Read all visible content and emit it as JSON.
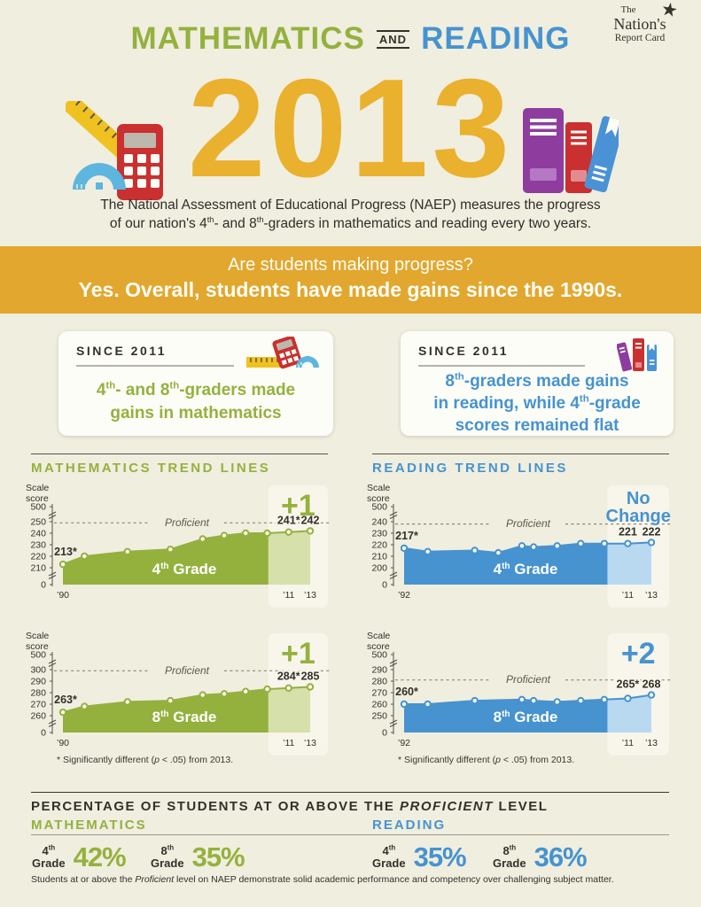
{
  "logo": {
    "the": "The",
    "nations": "Nation's",
    "report_card": "Report Card"
  },
  "header": {
    "title_math": "MATHEMATICS",
    "title_and": "AND",
    "title_reading": "READING"
  },
  "hero": {
    "year": "2013",
    "desc_line1": "The National Assessment of Educational Progress (NAEP) measures the progress",
    "desc_line2_parts": [
      {
        "t": "of our nation's 4"
      },
      {
        "sup": "th"
      },
      {
        "t": "- and 8"
      },
      {
        "sup": "th"
      },
      {
        "t": "-graders in mathematics and reading every two years."
      }
    ]
  },
  "banner": {
    "question": "Are students making progress?",
    "answer": "Yes. Overall, students have made gains since the 1990s."
  },
  "since_boxes": [
    {
      "label": "SINCE 2011",
      "lines": [
        [
          {
            "t": "4"
          },
          {
            "sup": "th"
          },
          {
            "t": "- and 8"
          },
          {
            "sup": "th"
          },
          {
            "t": "-graders made"
          }
        ],
        [
          {
            "t": "gains in mathematics"
          }
        ],
        []
      ]
    },
    {
      "label": "SINCE 2011",
      "lines": [
        [
          {
            "t": "8"
          },
          {
            "sup": "th"
          },
          {
            "t": "-graders made gains"
          }
        ],
        [
          {
            "t": "in reading, while 4"
          },
          {
            "sup": "th"
          },
          {
            "t": "-grade"
          }
        ],
        [
          {
            "t": "scores remained flat"
          }
        ]
      ]
    }
  ],
  "sections": {
    "math_title": "MATHEMATICS TREND LINES",
    "reading_title": "READING TREND LINES"
  },
  "footnote_parts": [
    {
      "t": "* Significantly different ("
    },
    {
      "i": "p"
    },
    {
      "t": " < .05) from 2013."
    }
  ],
  "proficient_section": {
    "header_parts": [
      {
        "t": "PERCENTAGE OF STUDENTS AT OR ABOVE THE "
      },
      {
        "i": "PROFICIENT"
      },
      {
        "t": " LEVEL"
      }
    ],
    "math_label": "MATHEMATICS",
    "reading_label": "READING",
    "stats": [
      {
        "grade": "4",
        "sup": "th",
        "word": "Grade",
        "value": "42%",
        "subject": "math"
      },
      {
        "grade": "8",
        "sup": "th",
        "word": "Grade",
        "value": "35%",
        "subject": "math"
      },
      {
        "grade": "4",
        "sup": "th",
        "word": "Grade",
        "value": "35%",
        "subject": "reading"
      },
      {
        "grade": "8",
        "sup": "th",
        "word": "Grade",
        "value": "36%",
        "subject": "reading"
      }
    ],
    "footer_parts": [
      {
        "t": "Students at or above the "
      },
      {
        "i": "Proficient"
      },
      {
        "t": " level on NAEP demonstrate solid academic performance and competency over challenging subject matter."
      }
    ]
  },
  "colors": {
    "math": "#94b13e",
    "math_light": "#d6e0aa",
    "reading": "#4693d0",
    "reading_light": "#b9d9f1",
    "gold": "#eab12e",
    "banner_gold": "#e2a72e",
    "dark": "#33312a",
    "cream": "#f0eedf",
    "band": "#f8f5eb",
    "box_white": "#fdfdf8",
    "ruler_yellow": "#f0c221",
    "calculator_red": "#c9302f",
    "protractor_blue": "#5cb6df",
    "book_purple": "#8e3d9e",
    "book_red": "#c9302f",
    "book_blue": "#4a92d6"
  },
  "icons": [
    "star-icon",
    "ruler-icon",
    "calculator-icon",
    "protractor-icon",
    "book-purple-icon",
    "book-red-icon",
    "book-blue-icon"
  ],
  "chart_data": [
    {
      "id": "math-grade4",
      "type": "area",
      "subject": "math",
      "scale_label_line1": "Scale",
      "scale_label_line2": "score",
      "y_axis_top": "500",
      "y_axis_bottom": "0",
      "y_ticks": [
        250,
        240,
        230,
        220,
        210
      ],
      "proficient_value": 249,
      "proficient_label": "Proficient",
      "years": [
        1990,
        1992,
        1996,
        2000,
        2003,
        2005,
        2007,
        2009,
        2011,
        2013
      ],
      "values": [
        213,
        220,
        224,
        226,
        235,
        238,
        240,
        240,
        241,
        242
      ],
      "year_tick_labels": [
        {
          "year": 1990,
          "label": "’90"
        },
        {
          "year": 2011,
          "label": "’11"
        },
        {
          "year": 2013,
          "label": "’13"
        }
      ],
      "start_label": "213*",
      "end_labels": [
        {
          "year": 2011,
          "label": "241*"
        },
        {
          "year": 2013,
          "label": "242"
        }
      ],
      "badge_lines": [
        "+1"
      ],
      "grade_label_parts": [
        {
          "t": "4"
        },
        {
          "sup": "th"
        },
        {
          "t": " Grade"
        }
      ],
      "highlight_from_year": 2011
    },
    {
      "id": "reading-grade4",
      "type": "area",
      "subject": "reading",
      "scale_label_line1": "Scale",
      "scale_label_line2": "score",
      "y_axis_top": "500",
      "y_axis_bottom": "0",
      "y_ticks": [
        240,
        230,
        220,
        210,
        200
      ],
      "proficient_value": 238,
      "proficient_label": "Proficient",
      "years": [
        1992,
        1994,
        1998,
        2000,
        2002,
        2003,
        2005,
        2007,
        2009,
        2011,
        2013
      ],
      "values": [
        217,
        214,
        215,
        213,
        219,
        218,
        219,
        221,
        221,
        221,
        222
      ],
      "year_tick_labels": [
        {
          "year": 1992,
          "label": "’92"
        },
        {
          "year": 2011,
          "label": "’11"
        },
        {
          "year": 2013,
          "label": "’13"
        }
      ],
      "start_label": "217*",
      "end_labels": [
        {
          "year": 2011,
          "label": "221"
        },
        {
          "year": 2013,
          "label": "222"
        }
      ],
      "badge_lines": [
        "No",
        "Change"
      ],
      "grade_label_parts": [
        {
          "t": "4"
        },
        {
          "sup": "th"
        },
        {
          "t": " Grade"
        }
      ],
      "highlight_from_year": 2011
    },
    {
      "id": "math-grade8",
      "type": "area",
      "subject": "math",
      "scale_label_line1": "Scale",
      "scale_label_line2": "score",
      "y_axis_top": "500",
      "y_axis_bottom": "0",
      "y_ticks": [
        300,
        290,
        280,
        270,
        260
      ],
      "proficient_value": 299,
      "proficient_label": "Proficient",
      "years": [
        1990,
        1992,
        1996,
        2000,
        2003,
        2005,
        2007,
        2009,
        2011,
        2013
      ],
      "values": [
        263,
        268,
        272,
        273,
        278,
        279,
        281,
        283,
        284,
        285
      ],
      "year_tick_labels": [
        {
          "year": 1990,
          "label": "’90"
        },
        {
          "year": 2011,
          "label": "’11"
        },
        {
          "year": 2013,
          "label": "’13"
        }
      ],
      "start_label": "263*",
      "end_labels": [
        {
          "year": 2011,
          "label": "284*"
        },
        {
          "year": 2013,
          "label": "285"
        }
      ],
      "badge_lines": [
        "+1"
      ],
      "grade_label_parts": [
        {
          "t": "8"
        },
        {
          "sup": "th"
        },
        {
          "t": " Grade"
        }
      ],
      "highlight_from_year": 2011
    },
    {
      "id": "reading-grade8",
      "type": "area",
      "subject": "reading",
      "scale_label_line1": "Scale",
      "scale_label_line2": "score",
      "y_axis_top": "500",
      "y_axis_bottom": "0",
      "y_ticks": [
        290,
        280,
        270,
        260,
        250
      ],
      "proficient_value": 281,
      "proficient_label": "Proficient",
      "years": [
        1992,
        1994,
        1998,
        2002,
        2003,
        2005,
        2007,
        2009,
        2011,
        2013
      ],
      "values": [
        260,
        260,
        263,
        264,
        263,
        262,
        263,
        264,
        265,
        268
      ],
      "year_tick_labels": [
        {
          "year": 1992,
          "label": "’92"
        },
        {
          "year": 2011,
          "label": "’11"
        },
        {
          "year": 2013,
          "label": "’13"
        }
      ],
      "start_label": "260*",
      "end_labels": [
        {
          "year": 2011,
          "label": "265*"
        },
        {
          "year": 2013,
          "label": "268"
        }
      ],
      "badge_lines": [
        "+2"
      ],
      "grade_label_parts": [
        {
          "t": "8"
        },
        {
          "sup": "th"
        },
        {
          "t": " Grade"
        }
      ],
      "highlight_from_year": 2011
    }
  ]
}
